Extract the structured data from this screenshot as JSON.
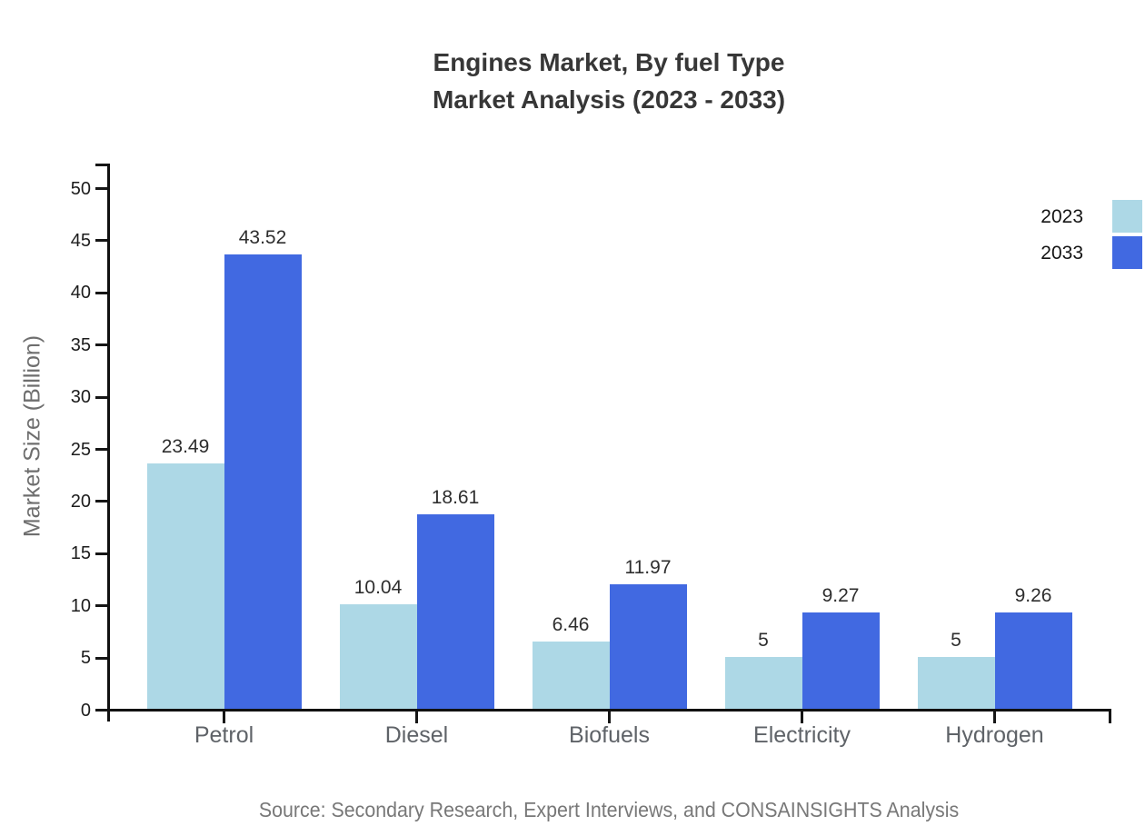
{
  "title": {
    "line1": "Engines Market, By fuel Type",
    "line2": "Market Analysis (2023 - 2033)"
  },
  "source_text": "Source: Secondary Research, Expert Interviews, and CONSAINSIGHTS Analysis",
  "chart_data": {
    "type": "bar",
    "title": "Engines Market, By fuel Type Market Analysis (2023 - 2033)",
    "categories": [
      "Petrol",
      "Diesel",
      "Biofuels",
      "Electricity",
      "Hydrogen"
    ],
    "series": [
      {
        "name": "2023",
        "color": "#add8e6",
        "values": [
          23.49,
          10.04,
          6.46,
          5,
          5
        ]
      },
      {
        "name": "2033",
        "color": "#4169e1",
        "values": [
          43.52,
          18.61,
          11.97,
          9.27,
          9.26
        ]
      }
    ],
    "xlabel": "",
    "ylabel": "Market Size (Billion)",
    "ylim": [
      0,
      50
    ],
    "ytick_step": 5,
    "grid": false,
    "value_labels": true,
    "legend_position": "top-right",
    "colors": {
      "series_2023": "#add8e6",
      "series_2033": "#4169e1",
      "axis": "#111111",
      "title_text": "#373737",
      "category_text": "#5f6368",
      "source_text": "#787878"
    }
  }
}
